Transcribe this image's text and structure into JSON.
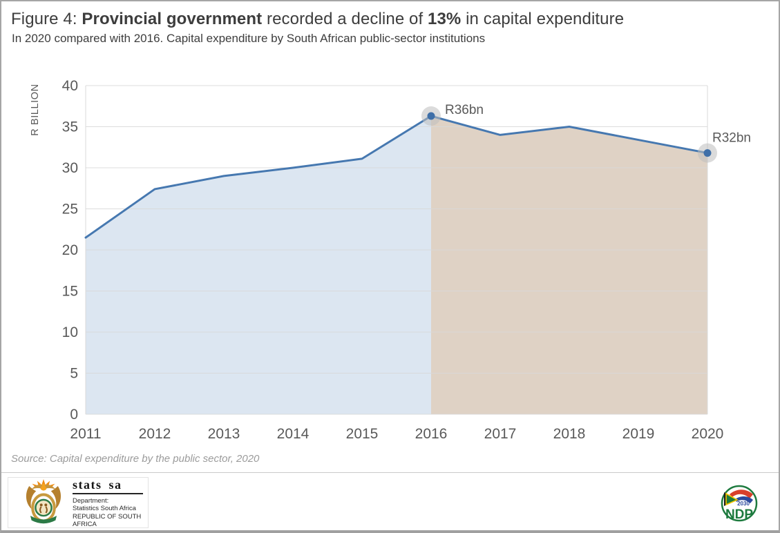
{
  "header": {
    "title_prefix": "Figure 4: ",
    "title_bold_1": "Provincial government",
    "title_middle": " recorded a decline of ",
    "title_bold_2": "13%",
    "title_suffix": " in capital expenditure",
    "subtitle": "In 2020 compared with 2016. Capital expenditure by South African public-sector institutions"
  },
  "source_note": "Source: Capital expenditure by the public sector, 2020",
  "chart_data": {
    "type": "area",
    "title": "Figure 4: Provincial government recorded a decline of 13% in capital expenditure",
    "subtitle": "In 2020 compared with 2016. Capital expenditure by South African public-sector institutions",
    "x": [
      2011,
      2012,
      2013,
      2014,
      2015,
      2016,
      2017,
      2018,
      2019,
      2020
    ],
    "values": [
      21.5,
      27.4,
      29.0,
      30.0,
      31.1,
      36.3,
      34.0,
      35.0,
      33.4,
      31.8
    ],
    "ylabel": "R BILLION",
    "xlabel": "",
    "ylim": [
      0,
      40
    ],
    "ytick_step": 5,
    "grid": true,
    "legend": "none",
    "split_x": 2016,
    "annotations": [
      {
        "x": 2016,
        "value": 36.3,
        "label": "R36bn"
      },
      {
        "x": 2020,
        "value": 31.8,
        "label": "R32bn"
      }
    ],
    "colors": {
      "line": "#4678b0",
      "marker": "#3f6fa8",
      "marker_halo": "#bdbdbd",
      "fill_before_split": "#dce6f1",
      "fill_after_split": "#dfd2c5",
      "grid": "#d9d9d9",
      "axis_text": "#595959"
    }
  },
  "footer": {
    "statssa": {
      "brand": "stats sa",
      "dept_label": "Department:",
      "dept_name": "Statistics South Africa",
      "country": "REPUBLIC OF SOUTH AFRICA"
    },
    "ndp": {
      "acronym": "NDP",
      "year": "2030"
    }
  }
}
